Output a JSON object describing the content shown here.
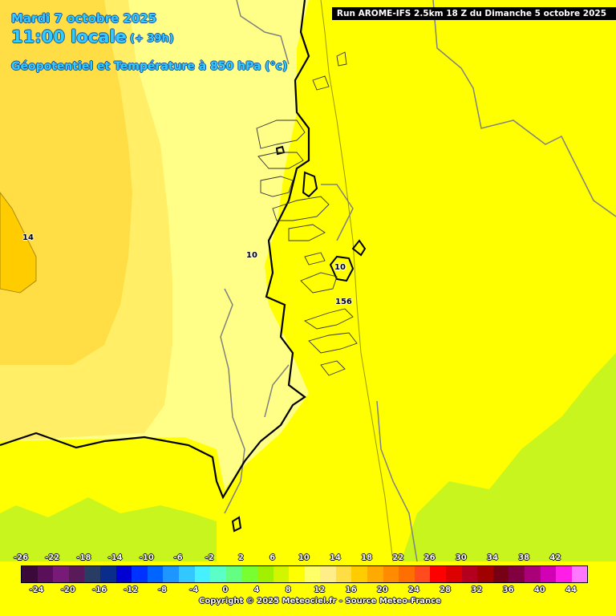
{
  "header": {
    "date": "Mardi 7 octobre 2025",
    "time": "11:00 locale",
    "lead": "(+ 39h)",
    "parameter": "Géopotentiel et Température à 850 hPa (°c)"
  },
  "run_label": "Run AROME-IFS 2.5km 18 Z du Dimanche 5 octobre 2025",
  "contour_labels": [
    "14",
    "10",
    "10",
    "156"
  ],
  "map_colors": {
    "t14": "#ffcc00",
    "t12": "#ffdd44",
    "t11": "#ffee66",
    "t10": "#ffff88",
    "t8": "#ffff00",
    "t6": "#c8f51e",
    "boundary": "#000000",
    "border": "#808080"
  },
  "legend": {
    "colors": [
      "#3b0a3b",
      "#5a0f5a",
      "#781a78",
      "#5a1a5a",
      "#283c64",
      "#0a2d8c",
      "#0000d2",
      "#0032ff",
      "#0064ff",
      "#1e96ff",
      "#32c8ff",
      "#46f0ff",
      "#5affc8",
      "#64ff82",
      "#78ff32",
      "#a0f000",
      "#d2f500",
      "#ffff00",
      "#ffff66",
      "#ffee88",
      "#ffdd44",
      "#ffcc00",
      "#ffaa00",
      "#ff8c00",
      "#ff6e00",
      "#ff4b1e",
      "#ff0000",
      "#dc0000",
      "#b4001e",
      "#a00000",
      "#780014",
      "#820041",
      "#aa0078",
      "#d200b4",
      "#ff1ee6",
      "#ff78ff"
    ],
    "ticks_top": [
      "-26",
      "-22",
      "-18",
      "-14",
      "-10",
      "-6",
      "-2",
      "2",
      "6",
      "10",
      "14",
      "18",
      "22",
      "26",
      "30",
      "34",
      "38",
      "42"
    ],
    "ticks_bottom": [
      "-24",
      "-20",
      "-16",
      "-12",
      "-8",
      "-4",
      "0",
      "4",
      "8",
      "12",
      "16",
      "20",
      "24",
      "28",
      "32",
      "36",
      "40",
      "44"
    ]
  },
  "copyright": "Copyright © 2025 Meteociel.fr - Source Meteo-France"
}
